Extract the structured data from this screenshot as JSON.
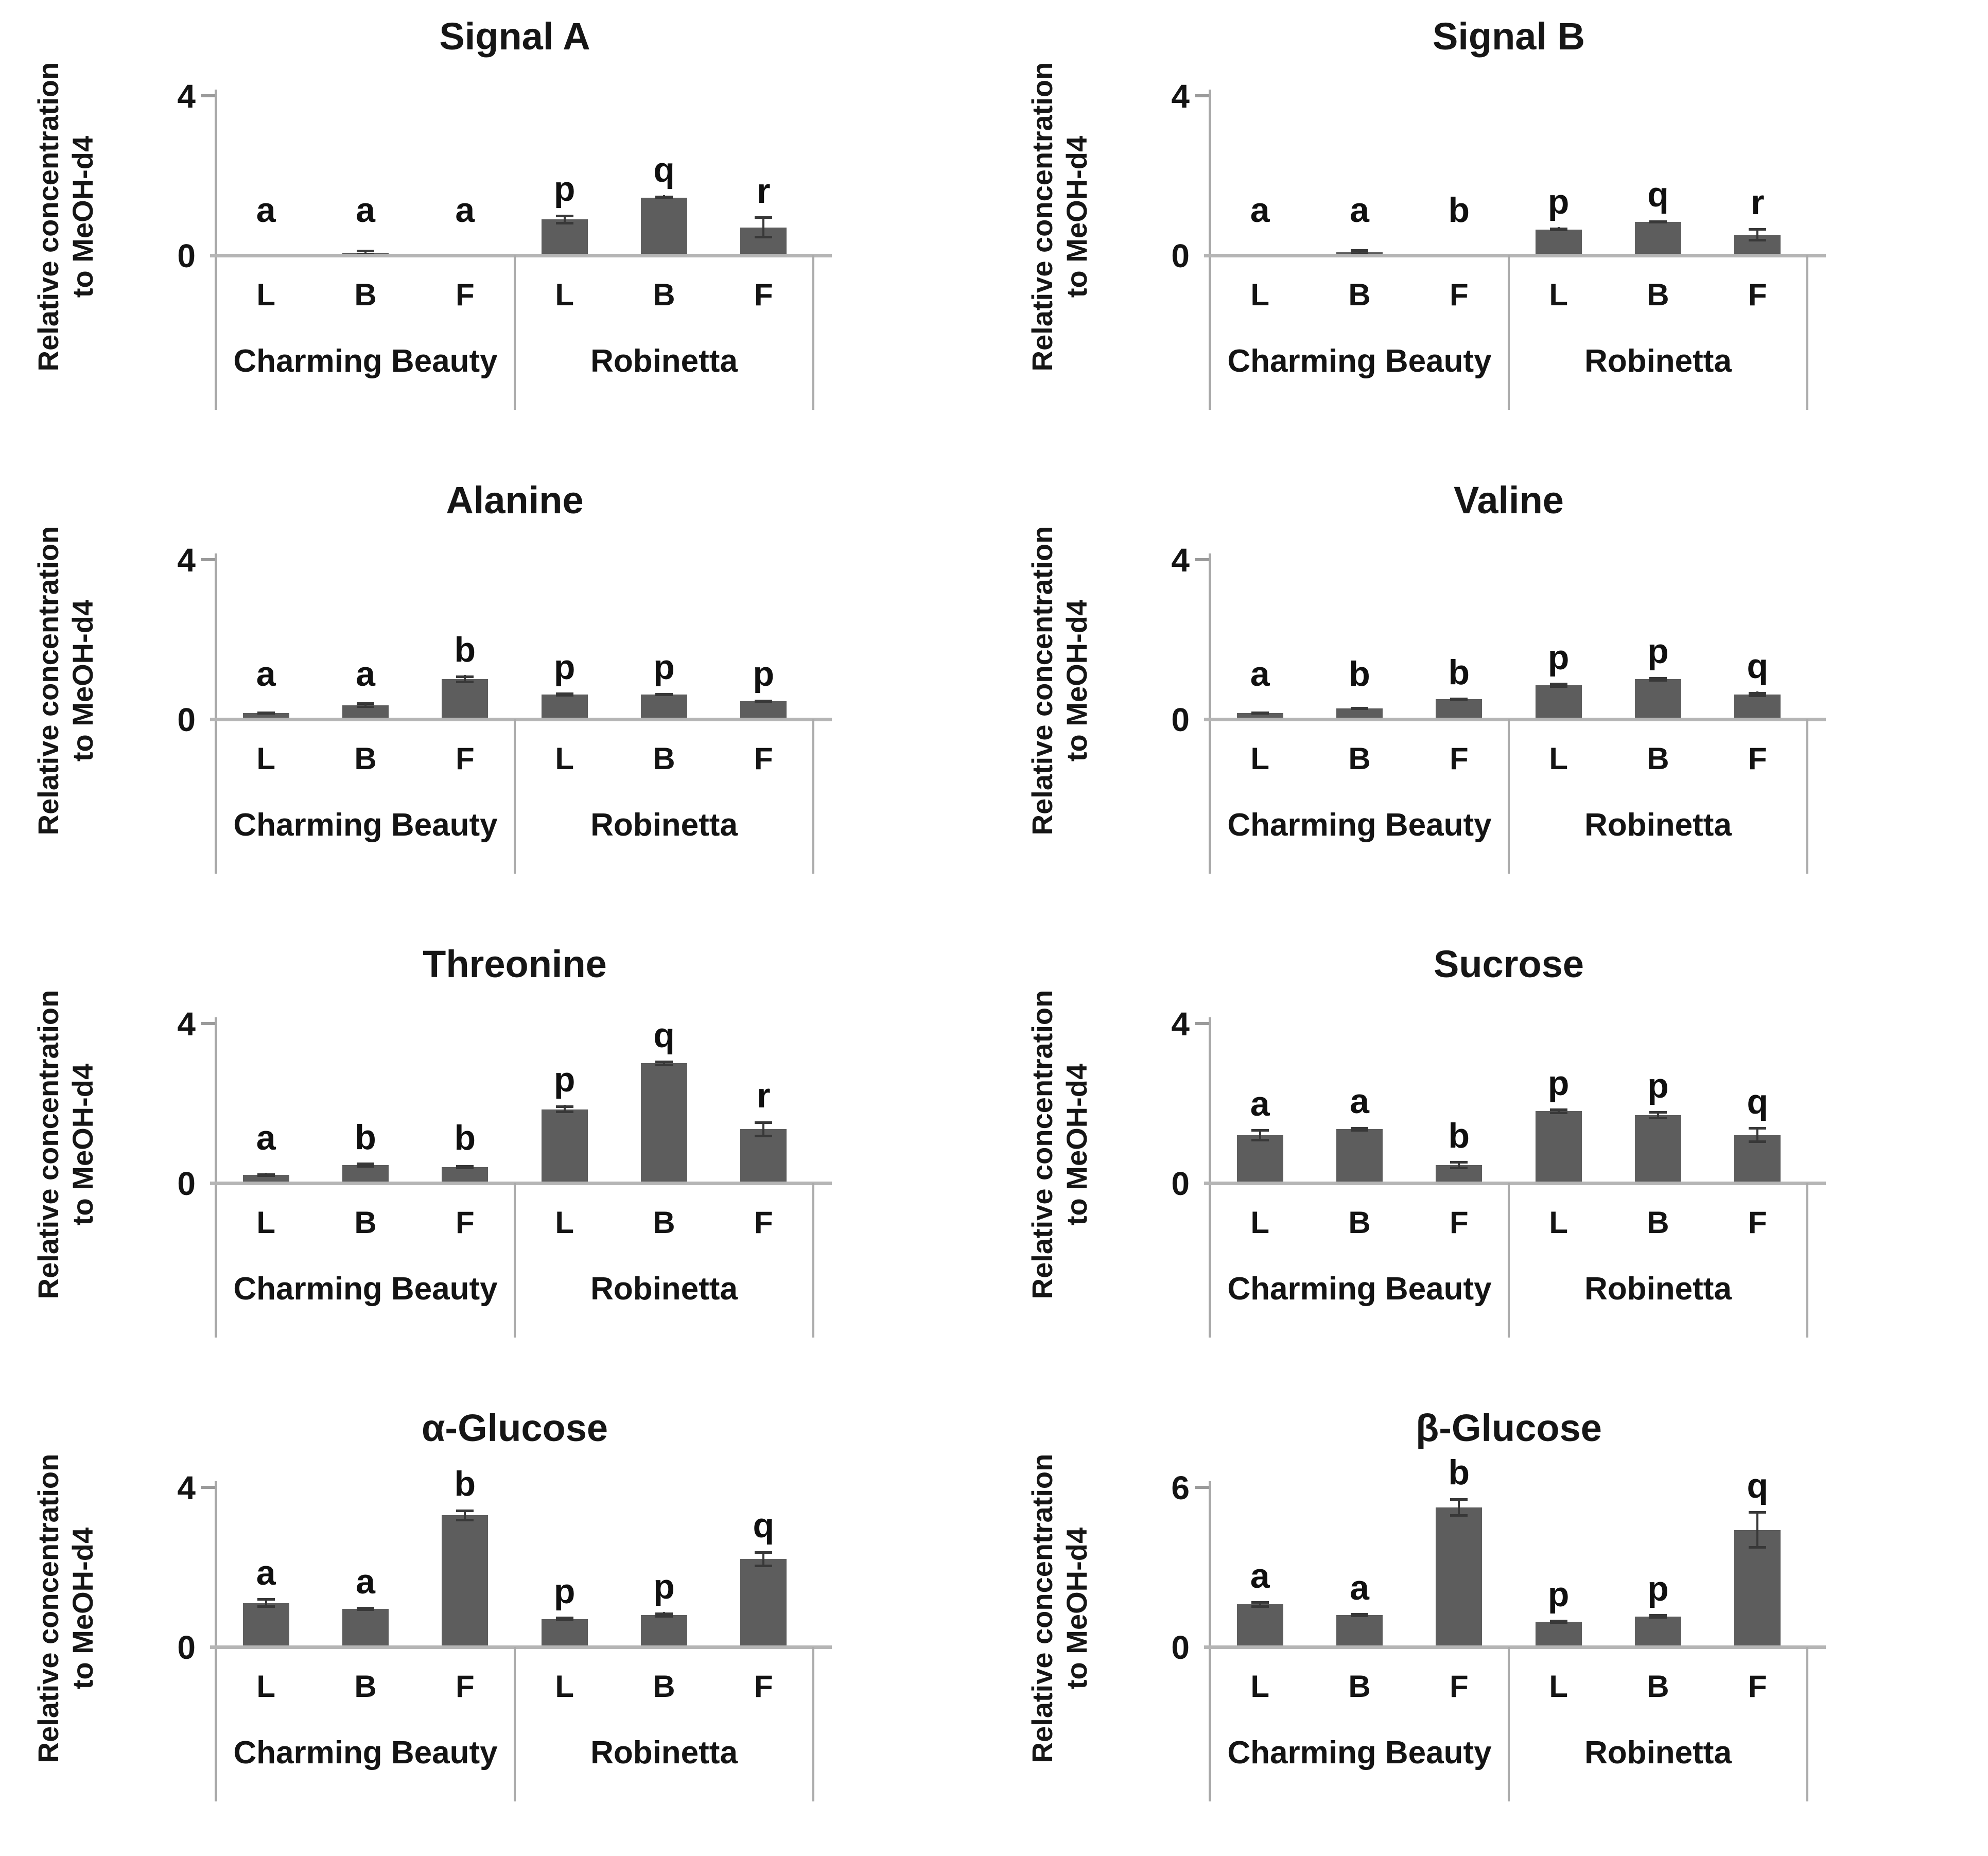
{
  "figure": {
    "ylabel_line1": "Relative concentration",
    "ylabel_line2": "to MeOH-d4"
  },
  "chart_data": [
    {
      "type": "bar",
      "title": "Signal A",
      "ylabel": "Relative concentration to MeOH-d4",
      "ymax": 4,
      "ymax_label": "4",
      "zero_label": "0",
      "ylim": [
        0,
        4
      ],
      "grid": false,
      "legend": "none",
      "groups": [
        "Charming Beauty",
        "Robinetta"
      ],
      "categories": [
        "L",
        "B",
        "F",
        "L",
        "B",
        "F"
      ],
      "values": [
        0.02,
        0.06,
        0.02,
        0.9,
        1.45,
        0.7
      ],
      "errors": [
        0,
        0.08,
        0,
        0.12,
        0.05,
        0.28
      ],
      "letters": [
        "a",
        "a",
        "a",
        "p",
        "q",
        "r"
      ]
    },
    {
      "type": "bar",
      "title": "Signal B",
      "ylabel": "Relative concentration to MeOH-d4",
      "ymax": 4,
      "ymax_label": "4",
      "zero_label": "0",
      "ylim": [
        0,
        4
      ],
      "grid": false,
      "legend": "none",
      "groups": [
        "Charming Beauty",
        "Robinetta"
      ],
      "categories": [
        "L",
        "B",
        "F",
        "L",
        "B",
        "F"
      ],
      "values": [
        0.02,
        0.08,
        0.02,
        0.65,
        0.84,
        0.52
      ],
      "errors": [
        0,
        0.07,
        0,
        0.05,
        0.04,
        0.17
      ],
      "letters": [
        "a",
        "a",
        "b",
        "p",
        "q",
        "r"
      ]
    },
    {
      "type": "bar",
      "title": "Alanine",
      "ylabel": "Relative concentration to MeOH-d4",
      "ymax": 4,
      "ymax_label": "4",
      "zero_label": "0",
      "ylim": [
        0,
        4
      ],
      "grid": false,
      "legend": "none",
      "groups": [
        "Charming Beauty",
        "Robinetta"
      ],
      "categories": [
        "L",
        "B",
        "F",
        "L",
        "B",
        "F"
      ],
      "values": [
        0.15,
        0.35,
        1.0,
        0.62,
        0.62,
        0.45
      ],
      "errors": [
        0.04,
        0.07,
        0.1,
        0.05,
        0.04,
        0.04
      ],
      "letters": [
        "a",
        "a",
        "b",
        "p",
        "p",
        "p"
      ]
    },
    {
      "type": "bar",
      "title": "Valine",
      "ylabel": "Relative concentration to MeOH-d4",
      "ymax": 4,
      "ymax_label": "4",
      "zero_label": "0",
      "ylim": [
        0,
        4
      ],
      "grid": false,
      "legend": "none",
      "groups": [
        "Charming Beauty",
        "Robinetta"
      ],
      "categories": [
        "L",
        "B",
        "F",
        "L",
        "B",
        "F"
      ],
      "values": [
        0.15,
        0.27,
        0.5,
        0.85,
        1.0,
        0.62
      ],
      "errors": [
        0.04,
        0.04,
        0.04,
        0.06,
        0.06,
        0.07
      ],
      "letters": [
        "a",
        "b",
        "b",
        "p",
        "p",
        "q"
      ]
    },
    {
      "type": "bar",
      "title": "Threonine",
      "ylabel": "Relative concentration to MeOH-d4",
      "ymax": 4,
      "ymax_label": "4",
      "zero_label": "0",
      "ylim": [
        0,
        4
      ],
      "grid": false,
      "legend": "none",
      "groups": [
        "Charming Beauty",
        "Robinetta"
      ],
      "categories": [
        "L",
        "B",
        "F",
        "L",
        "B",
        "F"
      ],
      "values": [
        0.2,
        0.45,
        0.4,
        1.85,
        3.0,
        1.35
      ],
      "errors": [
        0.05,
        0.06,
        0.05,
        0.1,
        0.07,
        0.2
      ],
      "letters": [
        "a",
        "b",
        "b",
        "p",
        "q",
        "r"
      ]
    },
    {
      "type": "bar",
      "title": "Sucrose",
      "ylabel": "Relative concentration to MeOH-d4",
      "ymax": 4,
      "ymax_label": "4",
      "zero_label": "0",
      "ylim": [
        0,
        4
      ],
      "grid": false,
      "legend": "none",
      "groups": [
        "Charming Beauty",
        "Robinetta"
      ],
      "categories": [
        "L",
        "B",
        "F",
        "L",
        "B",
        "F"
      ],
      "values": [
        1.2,
        1.35,
        0.45,
        1.8,
        1.7,
        1.2
      ],
      "errors": [
        0.15,
        0.06,
        0.1,
        0.07,
        0.1,
        0.2
      ],
      "letters": [
        "a",
        "a",
        "b",
        "p",
        "p",
        "q"
      ]
    },
    {
      "type": "bar",
      "title": "α-Glucose",
      "ylabel": "Relative concentration to MeOH-d4",
      "ymax": 4,
      "ymax_label": "4",
      "zero_label": "0",
      "ylim": [
        0,
        4
      ],
      "grid": false,
      "legend": "none",
      "groups": [
        "Charming Beauty",
        "Robinetta"
      ],
      "categories": [
        "L",
        "B",
        "F",
        "L",
        "B",
        "F"
      ],
      "values": [
        1.1,
        0.95,
        3.3,
        0.7,
        0.8,
        2.2
      ],
      "errors": [
        0.12,
        0.05,
        0.15,
        0.06,
        0.07,
        0.2
      ],
      "letters": [
        "a",
        "a",
        "b",
        "p",
        "p",
        "q"
      ]
    },
    {
      "type": "bar",
      "title": "β-Glucose",
      "ylabel": "Relative concentration to MeOH-d4",
      "ymax": 6,
      "ymax_label": "6",
      "zero_label": "0",
      "ylim": [
        0,
        6
      ],
      "grid": false,
      "legend": "none",
      "groups": [
        "Charming Beauty",
        "Robinetta"
      ],
      "categories": [
        "L",
        "B",
        "F",
        "L",
        "B",
        "F"
      ],
      "values": [
        1.6,
        1.2,
        5.25,
        0.95,
        1.15,
        4.4
      ],
      "errors": [
        0.12,
        0.07,
        0.35,
        0.07,
        0.08,
        0.7
      ],
      "letters": [
        "a",
        "a",
        "b",
        "p",
        "p",
        "q"
      ]
    }
  ]
}
